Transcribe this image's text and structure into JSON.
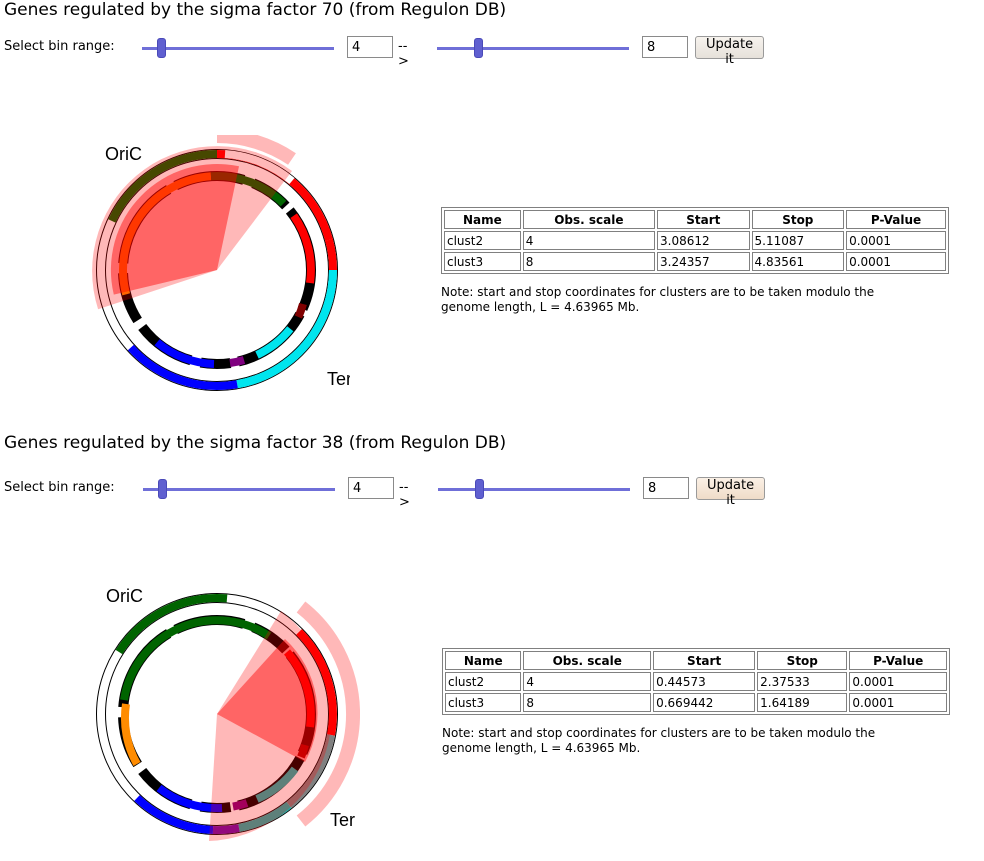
{
  "panels": [
    {
      "title": "Genes regulated by the sigma factor 70 (from Regulon DB)",
      "controls": {
        "label": "Select bin range:",
        "min_value": "4",
        "arrow": "-->",
        "max_value": "8",
        "update_label": "Update it",
        "min_fraction": 0.1,
        "max_fraction": 0.2
      },
      "plot": {
        "oric_label": "OriC",
        "ter_label": "Ter"
      },
      "table": {
        "headers": [
          "Name",
          "Obs. scale",
          "Start",
          "Stop",
          "P-Value"
        ],
        "rows": [
          [
            "clust2",
            "4",
            "3.08612",
            "5.11087",
            "0.0001"
          ],
          [
            "clust3",
            "8",
            "3.24357",
            "4.83561",
            "0.0001"
          ]
        ]
      },
      "note": "Note: start and stop coordinates for clusters are to be taken modulo the genome length, L = 4.63965 Mb."
    },
    {
      "title": "Genes regulated by the sigma factor 38 (from Regulon DB)",
      "controls": {
        "label": "Select bin range:",
        "min_value": "4",
        "arrow": "-->",
        "max_value": "8",
        "update_label": "Update it",
        "min_fraction": 0.1,
        "max_fraction": 0.2
      },
      "plot": {
        "oric_label": "OriC",
        "ter_label": "Ter"
      },
      "table": {
        "headers": [
          "Name",
          "Obs. scale",
          "Start",
          "Stop",
          "P-Value"
        ],
        "rows": [
          [
            "clust2",
            "4",
            "0.44573",
            "2.37533",
            "0.0001"
          ],
          [
            "clust3",
            "8",
            "0.669442",
            "1.64189",
            "0.0001"
          ]
        ]
      },
      "note": "Note: start and stop coordinates for clusters are to be taken modulo the genome length, L = 4.63965 Mb."
    }
  ]
}
